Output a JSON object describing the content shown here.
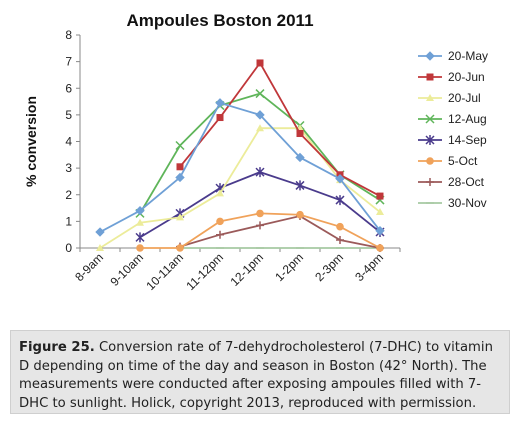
{
  "chart_data": {
    "type": "line",
    "title": "Ampoules Boston 2011",
    "ylabel": "% conversion",
    "xlabel": "",
    "ylim": [
      0,
      8
    ],
    "yticks": [
      0,
      1,
      2,
      3,
      4,
      5,
      6,
      7,
      8
    ],
    "categories": [
      "8-9am",
      "9-10am",
      "10-11am",
      "11-12pm",
      "12-1pm",
      "1-2pm",
      "2-3pm",
      "3-4pm"
    ],
    "grid": false,
    "legend_position": "right",
    "series": [
      {
        "name": "20-May",
        "color": "#6fa0d6",
        "marker": "diamond",
        "values": [
          0.6,
          1.4,
          2.65,
          5.45,
          5.0,
          3.4,
          2.6,
          0.65
        ]
      },
      {
        "name": "20-Jun",
        "color": "#c0373a",
        "marker": "square",
        "values": [
          null,
          null,
          3.05,
          4.9,
          6.95,
          4.3,
          2.75,
          1.95
        ]
      },
      {
        "name": "20-Jul",
        "color": "#ecec9a",
        "marker": "triangle",
        "values": [
          0.0,
          0.95,
          1.15,
          2.05,
          4.5,
          4.5,
          2.55,
          1.35
        ]
      },
      {
        "name": "12-Aug",
        "color": "#5fb55a",
        "marker": "x",
        "values": [
          null,
          1.3,
          3.85,
          5.35,
          5.8,
          4.6,
          2.75,
          1.8
        ]
      },
      {
        "name": "14-Sep",
        "color": "#4a3b8c",
        "marker": "star",
        "values": [
          null,
          0.4,
          1.3,
          2.25,
          2.85,
          2.35,
          1.8,
          0.6
        ]
      },
      {
        "name": "5-Oct",
        "color": "#f0a25a",
        "marker": "circle",
        "values": [
          null,
          0.0,
          0.0,
          1.0,
          1.3,
          1.25,
          0.8,
          0.0
        ]
      },
      {
        "name": "28-Oct",
        "color": "#9b5a5a",
        "marker": "plus",
        "values": [
          null,
          null,
          0.05,
          0.5,
          0.85,
          1.2,
          0.3,
          0.0
        ]
      },
      {
        "name": "30-Nov",
        "color": "#a6c9a2",
        "marker": "dash",
        "values": [
          null,
          null,
          0.0,
          0.0,
          0.0,
          0.0,
          0.0,
          0.0
        ]
      }
    ]
  },
  "caption": {
    "label": "Figure 25.",
    "text": " Conversion rate of 7-dehydrocholesterol (7-DHC) to vitamin D depending on time of the day and season in Boston (42° North). The measurements were conducted after exposing ampoules filled with 7-DHC to sunlight. Holick, copyright 2013, reproduced with permission."
  }
}
